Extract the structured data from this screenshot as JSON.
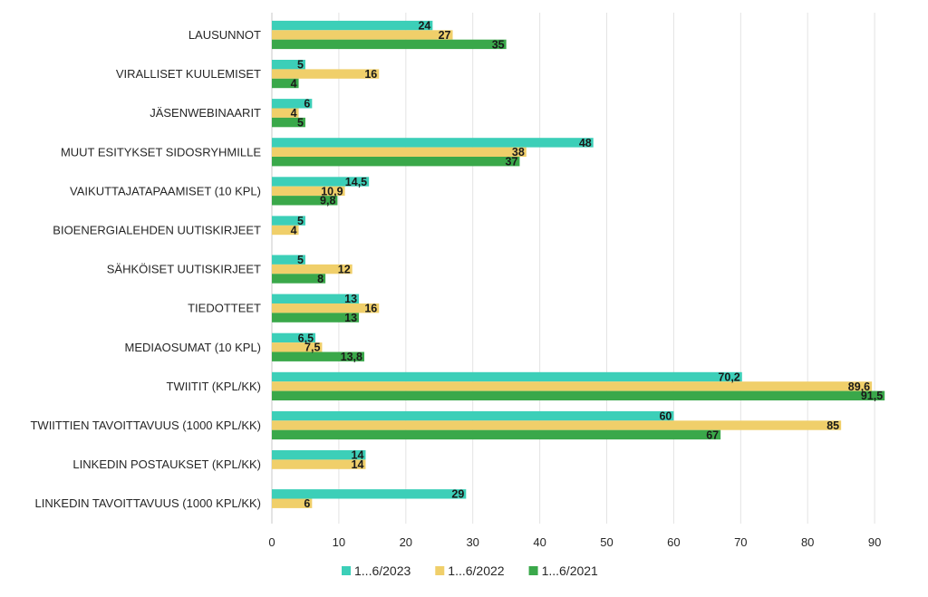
{
  "chart_data": {
    "type": "bar",
    "orientation": "horizontal",
    "categories": [
      "LAUSUNNOT",
      "VIRALLISET KUULEMISET",
      "JÄSENWEBINAARIT",
      "MUUT ESITYKSET SIDOSRYHMILLE",
      "VAIKUTTAJATAPAAMISET (10 KPL)",
      "BIOENERGIALEHDEN UUTISKIRJEET",
      "SÄHKÖISET UUTISKIRJEET",
      "TIEDOTTEET",
      "MEDIAOSUMAT (10 KPL)",
      "TWIITIT (KPL/KK)",
      "TWIITTIEN TAVOITTAVUUS (1000 KPL/KK)",
      "LINKEDIN POSTAUKSET (KPL/KK)",
      "LINKEDIN TAVOITTAVUUS (1000 KPL/KK)"
    ],
    "series": [
      {
        "name": "1...6/2023",
        "color": "#3ccfb8",
        "values": [
          24,
          5,
          6,
          48,
          14.5,
          5,
          5,
          13,
          6.5,
          70.2,
          60,
          14,
          29
        ],
        "labels": [
          "24",
          "5",
          "6",
          "48",
          "14,5",
          "5",
          "5",
          "13",
          "6,5",
          "70,2",
          "60",
          "14",
          "29"
        ]
      },
      {
        "name": "1...6/2022",
        "color": "#f0cf6a",
        "values": [
          27,
          16,
          4,
          38,
          10.9,
          4,
          12,
          16,
          7.5,
          89.6,
          85,
          14,
          6
        ],
        "labels": [
          "27",
          "16",
          "4",
          "38",
          "10,9",
          "4",
          "12",
          "16",
          "7,5",
          "89,6",
          "85",
          "14",
          "6"
        ]
      },
      {
        "name": "1...6/2021",
        "color": "#3aa84a",
        "values": [
          35,
          4,
          5,
          37,
          9.8,
          null,
          8,
          13,
          13.8,
          91.5,
          67,
          null,
          null
        ],
        "labels": [
          "35",
          "4",
          "5",
          "37",
          "9,8",
          null,
          "8",
          "13",
          "13,8",
          "91,5",
          "67",
          null,
          null
        ]
      }
    ],
    "xlim": [
      0,
      95
    ],
    "xticks": [
      0,
      10,
      20,
      30,
      40,
      50,
      60,
      70,
      80,
      90
    ],
    "xtick_labels": [
      "0",
      "10",
      "20",
      "30",
      "40",
      "50",
      "60",
      "70",
      "80",
      "90"
    ],
    "grid": true,
    "legend_position": "bottom"
  }
}
